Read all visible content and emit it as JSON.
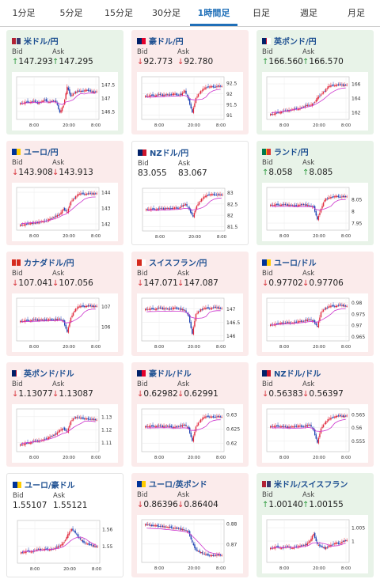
{
  "tabs": [
    "1分足",
    "5分足",
    "15分足",
    "30分足",
    "1時間足",
    "日足",
    "週足",
    "月足"
  ],
  "active_tab": 4,
  "colors": {
    "up": "#2a9a3c",
    "down": "#d8323a",
    "title": "#1d4f91",
    "accent": "#1f6fb8",
    "candle_up": "#e0283c",
    "candle_down": "#2346b4",
    "ma": "#cc33cc",
    "ma2": "#33aa55"
  },
  "labels": {
    "bid": "Bid",
    "ask": "Ask"
  },
  "cards": [
    {
      "title": "米ドル/円",
      "flag": "us",
      "dir": "up",
      "bid": "147.293",
      "ask": "147.295",
      "yticks": [
        "147.5",
        "147",
        "146.5"
      ],
      "xticks": [
        "8:00",
        "20:00",
        "8:00"
      ],
      "ylim": [
        146.2,
        147.8
      ],
      "shape": [
        0.35,
        0.4,
        0.38,
        0.42,
        0.36,
        0.4,
        0.45,
        0.38,
        0.42,
        0.4,
        0.1,
        0.3,
        0.8,
        0.55,
        0.65,
        0.7,
        0.68,
        0.72,
        0.7,
        0.66,
        0.68
      ]
    },
    {
      "title": "豪ドル/円",
      "flag": "au",
      "dir": "down",
      "bid": "92.773",
      "ask": "92.780",
      "yticks": [
        "92.5",
        "92",
        "91.5",
        "91"
      ],
      "xticks": [
        "8:00",
        "20:00",
        "8:00"
      ],
      "ylim": [
        90.8,
        92.8
      ],
      "shape": [
        0.55,
        0.58,
        0.56,
        0.6,
        0.57,
        0.6,
        0.58,
        0.62,
        0.58,
        0.6,
        0.7,
        0.45,
        0.1,
        0.5,
        0.65,
        0.75,
        0.8,
        0.82,
        0.8,
        0.83,
        0.82
      ]
    },
    {
      "title": "英ポンド/円",
      "flag": "gb",
      "dir": "up",
      "bid": "166.560",
      "ask": "166.570",
      "yticks": [
        "166",
        "164",
        "162"
      ],
      "xticks": [
        "8:00",
        "20:00",
        "8:00"
      ],
      "ylim": [
        161,
        167
      ],
      "shape": [
        0.05,
        0.1,
        0.1,
        0.15,
        0.15,
        0.18,
        0.2,
        0.2,
        0.25,
        0.3,
        0.3,
        0.35,
        0.5,
        0.6,
        0.7,
        0.82,
        0.85,
        0.85,
        0.87,
        0.85,
        0.86
      ]
    },
    {
      "title": "ユーロ/円",
      "flag": "eu",
      "dir": "down",
      "bid": "143.908",
      "ask": "143.913",
      "yticks": [
        "144",
        "143",
        "142"
      ],
      "xticks": [
        "8:00",
        "20:00",
        "8:00"
      ],
      "ylim": [
        141.6,
        144.3
      ],
      "shape": [
        0.05,
        0.08,
        0.1,
        0.1,
        0.12,
        0.15,
        0.15,
        0.2,
        0.25,
        0.3,
        0.35,
        0.5,
        0.4,
        0.7,
        0.8,
        0.9,
        0.92,
        0.9,
        0.92,
        0.91,
        0.92
      ]
    },
    {
      "title": "NZドル/円",
      "flag": "nz",
      "dir": "flat",
      "bid": "83.055",
      "ask": "83.067",
      "yticks": [
        "83",
        "82.5",
        "82",
        "81.5"
      ],
      "xticks": [
        "8:00",
        "20:00",
        "8:00"
      ],
      "ylim": [
        81.3,
        83.2
      ],
      "shape": [
        0.5,
        0.52,
        0.5,
        0.53,
        0.52,
        0.54,
        0.52,
        0.55,
        0.53,
        0.6,
        0.65,
        0.5,
        0.3,
        0.6,
        0.75,
        0.85,
        0.9,
        0.92,
        0.9,
        0.91,
        0.9
      ]
    },
    {
      "title": "ランド/円",
      "flag": "za",
      "dir": "up",
      "bid": "8.058",
      "ask": "8.085",
      "yticks": [
        "8.05",
        "8",
        "7.95"
      ],
      "xticks": [
        "8:00",
        "20:00",
        "8:00"
      ],
      "ylim": [
        7.92,
        8.1
      ],
      "shape": [
        0.6,
        0.62,
        0.6,
        0.62,
        0.6,
        0.6,
        0.58,
        0.6,
        0.62,
        0.6,
        0.58,
        0.55,
        0.2,
        0.5,
        0.75,
        0.8,
        0.82,
        0.85,
        0.82,
        0.84,
        0.83
      ]
    },
    {
      "title": "カナダドル/円",
      "flag": "ca",
      "dir": "down",
      "bid": "107.041",
      "ask": "107.056",
      "yticks": [
        "107",
        "106"
      ],
      "xticks": [
        "8:00",
        "20:00",
        "8:00"
      ],
      "ylim": [
        105.3,
        107.4
      ],
      "shape": [
        0.45,
        0.48,
        0.46,
        0.5,
        0.48,
        0.5,
        0.48,
        0.5,
        0.49,
        0.5,
        0.52,
        0.45,
        0.15,
        0.55,
        0.75,
        0.85,
        0.87,
        0.86,
        0.88,
        0.86,
        0.87
      ]
    },
    {
      "title": "スイスフラン/円",
      "flag": "ch",
      "dir": "down",
      "bid": "147.071",
      "ask": "147.087",
      "yticks": [
        "147",
        "146.5",
        "146"
      ],
      "xticks": [
        "8:00",
        "20:00",
        "8:00"
      ],
      "ylim": [
        145.8,
        147.4
      ],
      "shape": [
        0.78,
        0.8,
        0.78,
        0.82,
        0.8,
        0.8,
        0.78,
        0.82,
        0.8,
        0.78,
        0.75,
        0.6,
        0.1,
        0.65,
        0.75,
        0.8,
        0.82,
        0.8,
        0.84,
        0.82,
        0.8
      ]
    },
    {
      "title": "ユーロ/ドル",
      "flag": "eu",
      "dir": "down",
      "bid": "0.97702",
      "ask": "0.97706",
      "yticks": [
        "0.98",
        "0.975",
        "0.97",
        "0.965"
      ],
      "xticks": [
        "8:00",
        "20:00",
        "8:00"
      ],
      "ylim": [
        0.963,
        0.982
      ],
      "shape": [
        0.35,
        0.38,
        0.4,
        0.4,
        0.42,
        0.4,
        0.42,
        0.45,
        0.45,
        0.48,
        0.5,
        0.45,
        0.3,
        0.7,
        0.8,
        0.85,
        0.88,
        0.86,
        0.9,
        0.88,
        0.86
      ]
    },
    {
      "title": "英ポンド/ドル",
      "flag": "gb",
      "dir": "down",
      "bid": "1.13077",
      "ask": "1.13087",
      "yticks": [
        "1.13",
        "1.12",
        "1.11"
      ],
      "xticks": [
        "8:00",
        "20:00",
        "8:00"
      ],
      "ylim": [
        1.103,
        1.136
      ],
      "shape": [
        0.1,
        0.15,
        0.15,
        0.2,
        0.2,
        0.22,
        0.25,
        0.3,
        0.35,
        0.4,
        0.5,
        0.55,
        0.45,
        0.75,
        0.85,
        0.85,
        0.83,
        0.82,
        0.8,
        0.8,
        0.78
      ]
    },
    {
      "title": "豪ドル/ドル",
      "flag": "au",
      "dir": "down",
      "bid": "0.62982",
      "ask": "0.62991",
      "yticks": [
        "0.63",
        "0.625",
        "0.62"
      ],
      "xticks": [
        "8:00",
        "20:00",
        "8:00"
      ],
      "ylim": [
        0.617,
        0.632
      ],
      "shape": [
        0.6,
        0.62,
        0.6,
        0.62,
        0.6,
        0.62,
        0.6,
        0.58,
        0.6,
        0.62,
        0.65,
        0.55,
        0.2,
        0.6,
        0.75,
        0.85,
        0.88,
        0.87,
        0.86,
        0.88,
        0.86
      ]
    },
    {
      "title": "NZドル/ドル",
      "flag": "nz",
      "dir": "down",
      "bid": "0.56383",
      "ask": "0.56397",
      "yticks": [
        "0.565",
        "0.56",
        "0.555"
      ],
      "xticks": [
        "8:00",
        "20:00",
        "8:00"
      ],
      "ylim": [
        0.551,
        0.567
      ],
      "shape": [
        0.6,
        0.62,
        0.6,
        0.6,
        0.58,
        0.6,
        0.6,
        0.62,
        0.6,
        0.62,
        0.65,
        0.5,
        0.15,
        0.55,
        0.7,
        0.8,
        0.85,
        0.88,
        0.9,
        0.88,
        0.9
      ]
    },
    {
      "title": "ユーロ/豪ドル",
      "flag": "eu",
      "dir": "flat",
      "bid": "1.55107",
      "ask": "1.55121",
      "yticks": [
        "1.56",
        "1.55"
      ],
      "xticks": [
        "8:00",
        "20:00",
        "8:00"
      ],
      "ylim": [
        1.54,
        1.565
      ],
      "shape": [
        0.2,
        0.25,
        0.22,
        0.25,
        0.3,
        0.28,
        0.3,
        0.28,
        0.3,
        0.35,
        0.4,
        0.5,
        0.7,
        0.85,
        0.75,
        0.6,
        0.5,
        0.45,
        0.42,
        0.38,
        0.36
      ]
    },
    {
      "title": "ユーロ/英ポンド",
      "flag": "eu",
      "dir": "down",
      "bid": "0.86396",
      "ask": "0.86404",
      "yticks": [
        "0.88",
        "0.87"
      ],
      "xticks": [
        "8:00",
        "20:00",
        "8:00"
      ],
      "ylim": [
        0.861,
        0.882
      ],
      "shape": [
        0.95,
        0.92,
        0.93,
        0.9,
        0.9,
        0.88,
        0.88,
        0.85,
        0.85,
        0.82,
        0.8,
        0.75,
        0.45,
        0.25,
        0.2,
        0.15,
        0.12,
        0.1,
        0.1,
        0.12,
        0.1
      ]
    },
    {
      "title": "米ドル/スイスフラン",
      "flag": "us",
      "dir": "up",
      "bid": "1.00140",
      "ask": "1.00155",
      "yticks": [
        "1.005",
        "1"
      ],
      "xticks": [
        "8:00",
        "20:00",
        "8:00"
      ],
      "ylim": [
        0.992,
        1.008
      ],
      "shape": [
        0.3,
        0.35,
        0.3,
        0.32,
        0.35,
        0.3,
        0.33,
        0.35,
        0.38,
        0.4,
        0.5,
        0.7,
        0.4,
        0.35,
        0.3,
        0.35,
        0.4,
        0.45,
        0.42,
        0.5,
        0.52
      ]
    }
  ]
}
